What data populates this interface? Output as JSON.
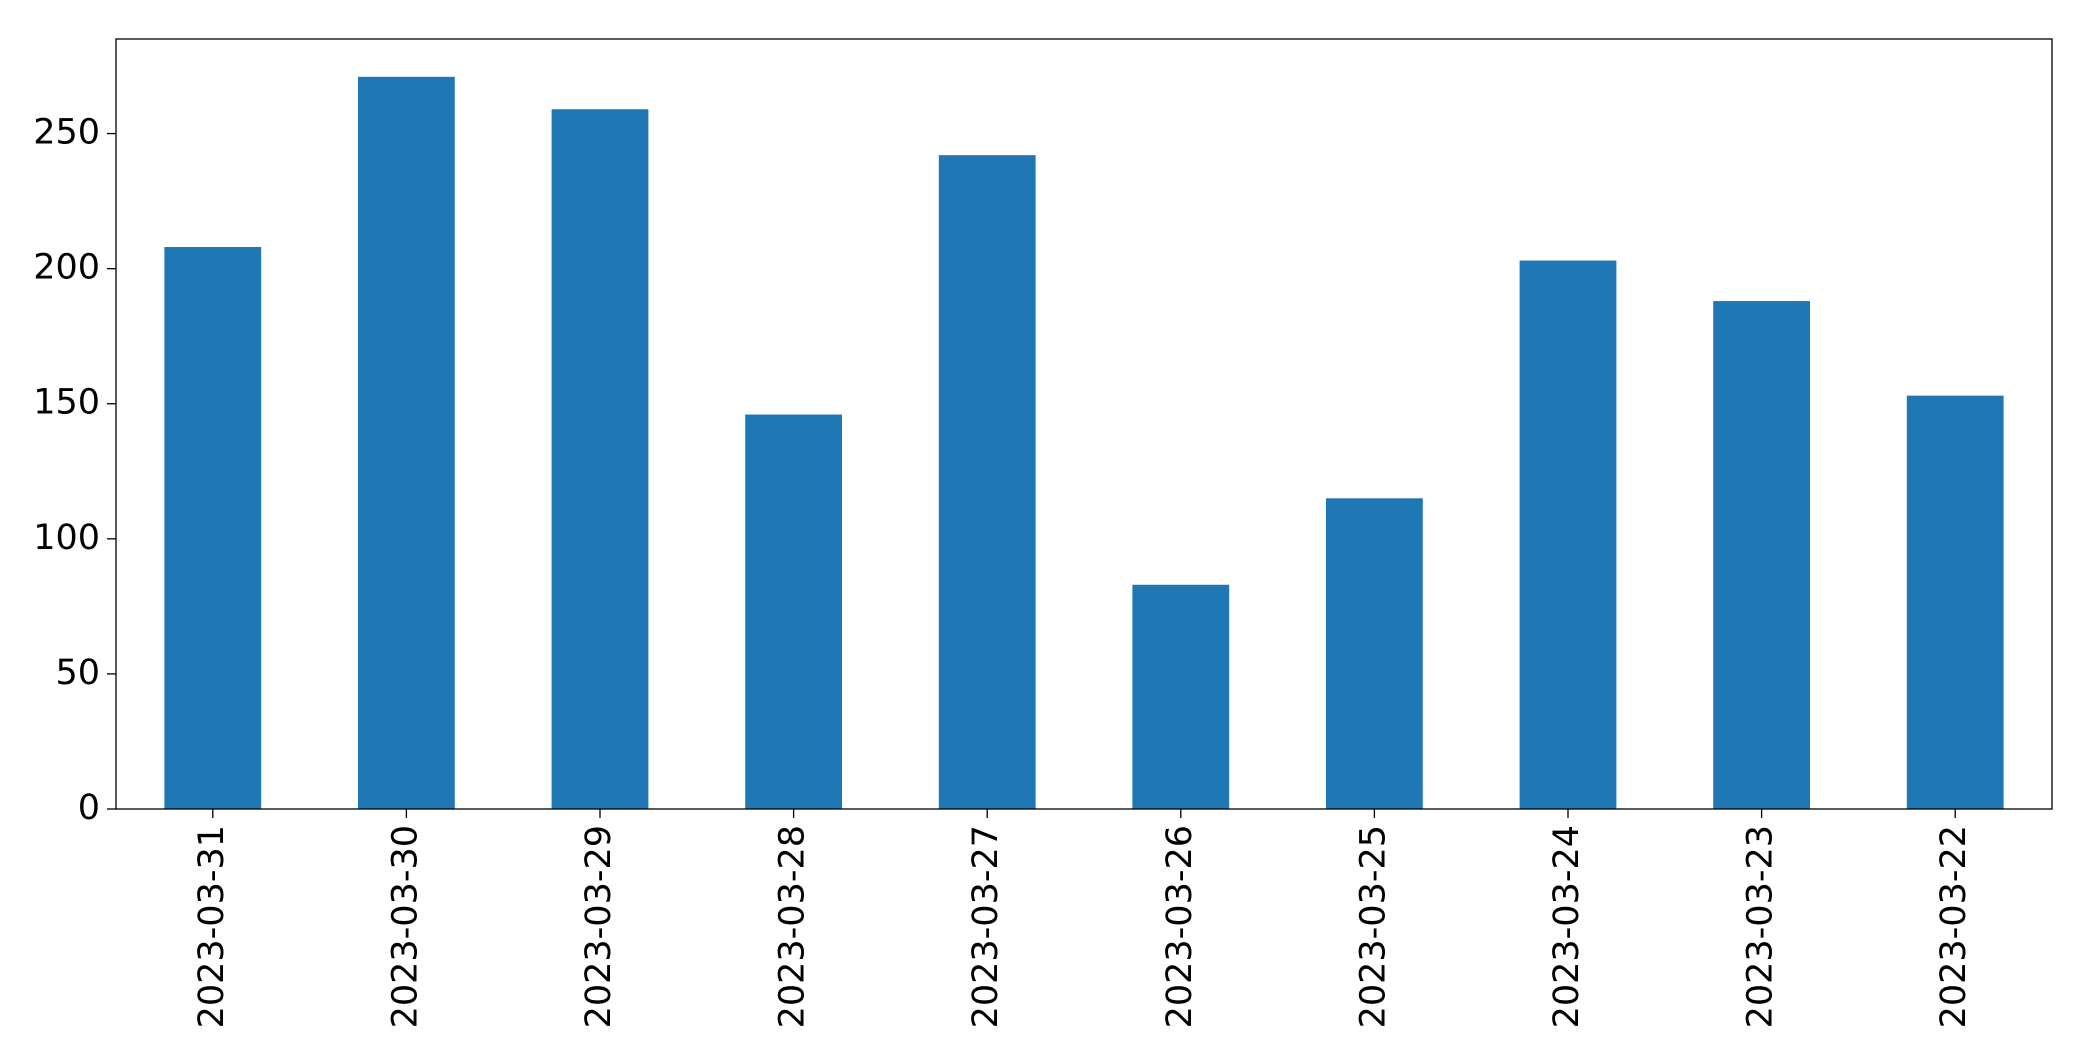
{
  "chart_data": {
    "type": "bar",
    "categories": [
      "2023-03-31",
      "2023-03-30",
      "2023-03-29",
      "2023-03-28",
      "2023-03-27",
      "2023-03-26",
      "2023-03-25",
      "2023-03-24",
      "2023-03-23",
      "2023-03-22"
    ],
    "values": [
      208,
      271,
      259,
      146,
      242,
      83,
      115,
      203,
      188,
      153
    ],
    "color": "#1f77b4",
    "ylim": [
      0,
      285
    ],
    "yticks": [
      0,
      50,
      100,
      150,
      200,
      250
    ],
    "grid": false
  }
}
